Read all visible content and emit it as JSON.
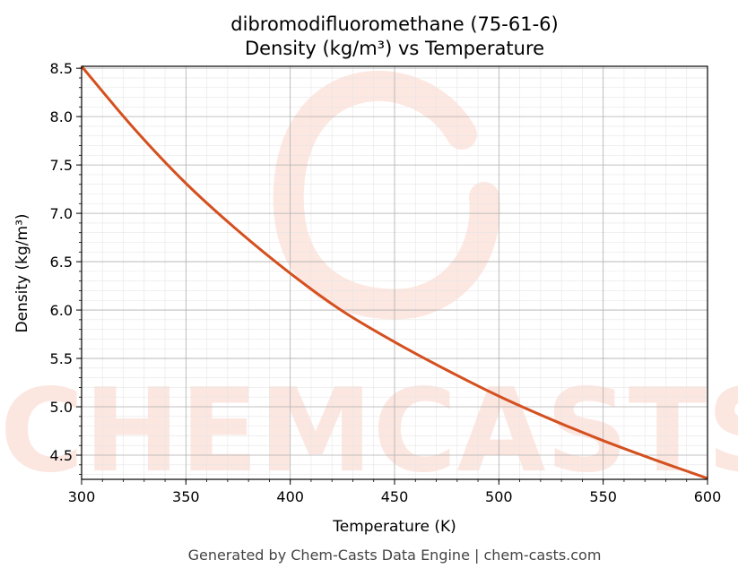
{
  "chart_data": {
    "type": "line",
    "title_line1": "dibromodifluoromethane (75-61-6)",
    "title_line2": "Density (kg/m³) vs Temperature",
    "xlabel": "Temperature (K)",
    "ylabel": "Density (kg/m³)",
    "xlim": [
      300,
      600
    ],
    "ylim": [
      4.25,
      8.52
    ],
    "x_ticks": [
      "300",
      "350",
      "400",
      "450",
      "500",
      "550",
      "600"
    ],
    "y_ticks": [
      "4.5",
      "5.0",
      "5.5",
      "6.0",
      "6.5",
      "7.0",
      "7.5",
      "8.0",
      "8.5"
    ],
    "grid": true,
    "series": [
      {
        "color": "#d4501f",
        "x": [
          300,
          325,
          350,
          375,
          400,
          425,
          450,
          475,
          500,
          525,
          550,
          575,
          600
        ],
        "y": [
          8.52,
          7.88,
          7.31,
          6.82,
          6.38,
          5.99,
          5.67,
          5.38,
          5.11,
          4.87,
          4.65,
          4.45,
          4.26
        ]
      }
    ],
    "watermark": "CHEMCASTS",
    "footer": "Generated by Chem-Casts Data Engine | chem-casts.com"
  }
}
